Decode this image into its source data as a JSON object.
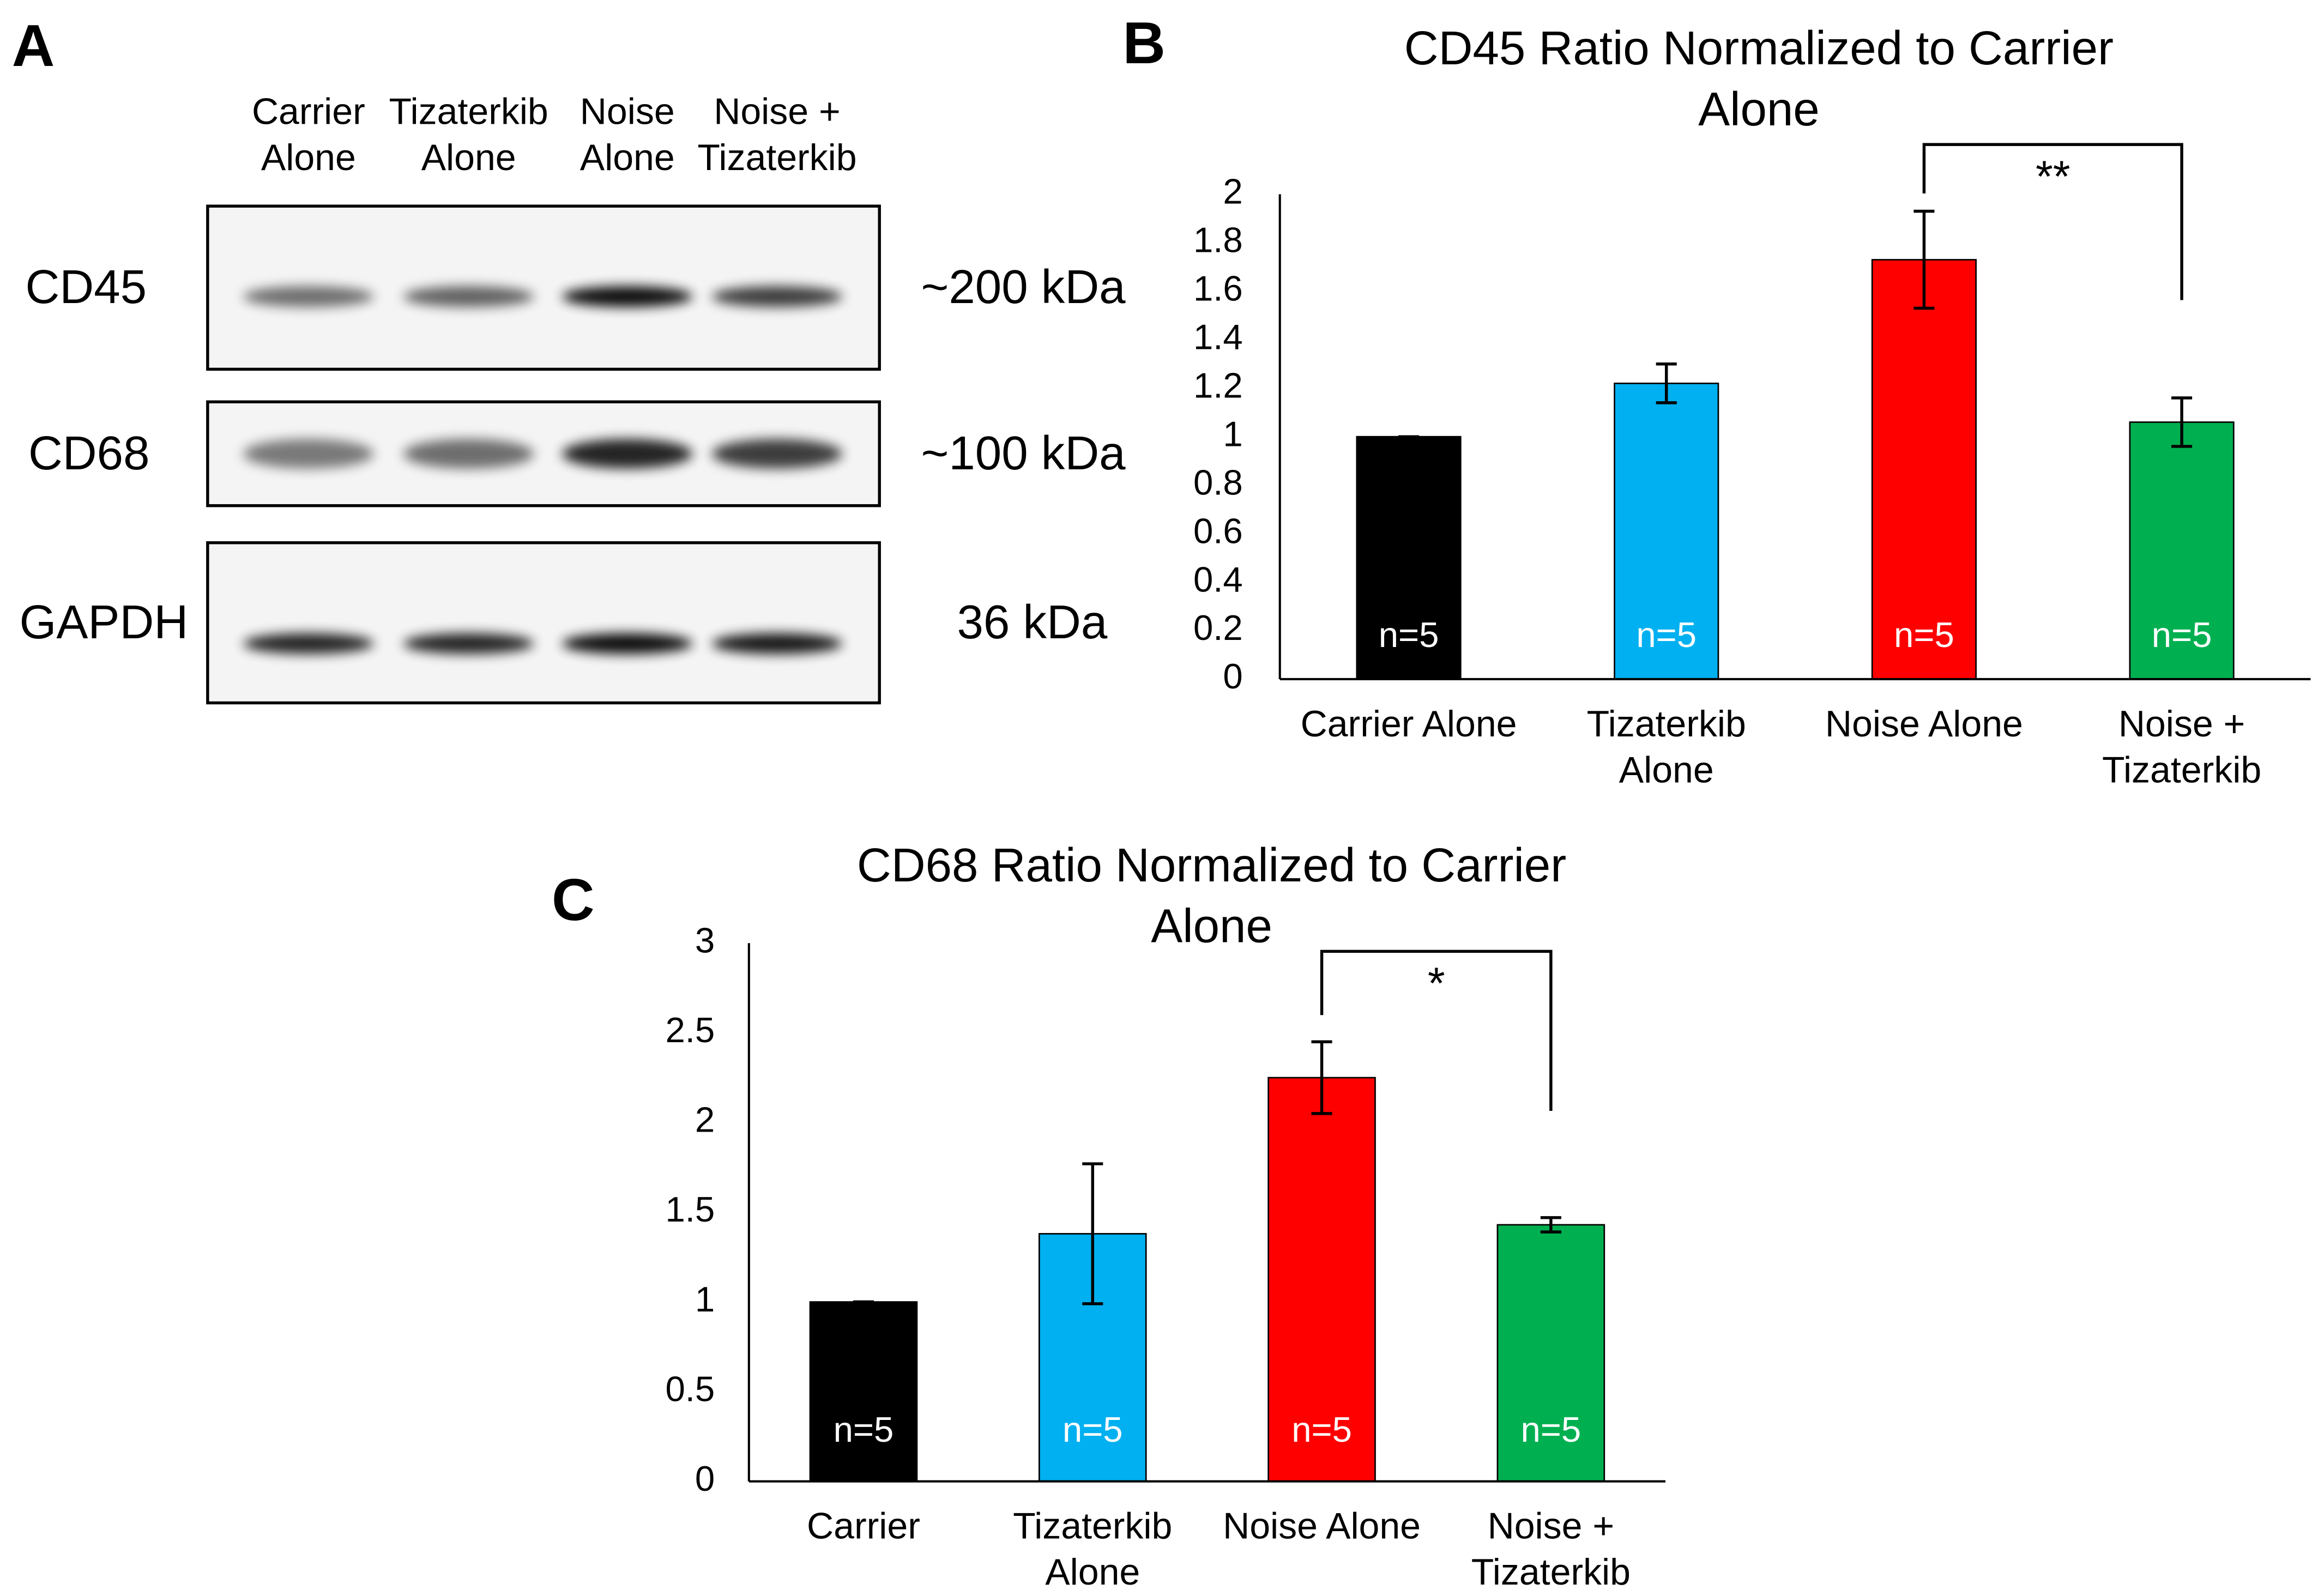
{
  "blot": {
    "panel_label": "A",
    "lanes": [
      [
        "Carrier",
        "Alone"
      ],
      [
        "Tizaterkib",
        "Alone"
      ],
      [
        "Noise",
        "Alone"
      ],
      [
        "Noise +",
        "Tizaterkib"
      ]
    ],
    "rows": [
      {
        "protein": "CD45",
        "size": "~200 kDa"
      },
      {
        "protein": "CD68",
        "size": "~100 kDa"
      },
      {
        "protein": "GAPDH",
        "size": "36 kDa"
      }
    ]
  },
  "chart_data": [
    {
      "type": "bar",
      "panel_label": "B",
      "title": [
        "CD45 Ratio Normalized to Carrier",
        "Alone"
      ],
      "categories": [
        [
          "Carrier Alone"
        ],
        [
          "Tizaterkib",
          "Alone"
        ],
        [
          "Noise Alone"
        ],
        [
          "Noise +",
          "Tizaterkib"
        ]
      ],
      "values": [
        1,
        1.22,
        1.73,
        1.06
      ],
      "errors": [
        0,
        0.08,
        0.2,
        0.1
      ],
      "bar_labels": [
        "n=5",
        "n=5",
        "n=5",
        "n=5"
      ],
      "colors": [
        "#000000",
        "#00b0f0",
        "#ff0000",
        "#00b050"
      ],
      "ylim": [
        0,
        2
      ],
      "yticks": [
        0,
        0.2,
        0.4,
        0.6,
        0.8,
        1,
        1.2,
        1.4,
        1.6,
        1.8,
        2
      ],
      "significance": [
        {
          "between": [
            2,
            3
          ],
          "label": "**"
        }
      ]
    },
    {
      "type": "bar",
      "panel_label": "C",
      "title": [
        "CD68 Ratio Normalized to Carrier",
        "Alone"
      ],
      "categories": [
        [
          "Carrier"
        ],
        [
          "Tizaterkib",
          "Alone"
        ],
        [
          "Noise Alone"
        ],
        [
          "Noise +",
          "Tizaterkib"
        ]
      ],
      "values": [
        1,
        1.38,
        2.25,
        1.43
      ],
      "errors": [
        0,
        0.39,
        0.2,
        0.04
      ],
      "bar_labels": [
        "n=5",
        "n=5",
        "n=5",
        "n=5"
      ],
      "colors": [
        "#000000",
        "#00b0f0",
        "#ff0000",
        "#00b050"
      ],
      "ylim": [
        0,
        3
      ],
      "yticks": [
        0,
        0.5,
        1,
        1.5,
        2,
        2.5,
        3
      ],
      "significance": [
        {
          "between": [
            2,
            3
          ],
          "label": "*"
        }
      ]
    }
  ]
}
